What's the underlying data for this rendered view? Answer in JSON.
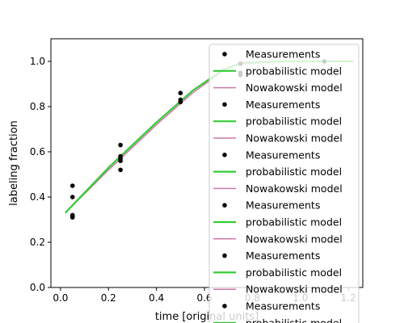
{
  "chart_data": {
    "type": "line",
    "xlabel": "time [original units]",
    "ylabel": "labeling fraction",
    "xlim": [
      -0.04,
      1.26
    ],
    "ylim": [
      0.0,
      1.1
    ],
    "xticks": [
      {
        "value": 0.0,
        "label": "0.0"
      },
      {
        "value": 0.2,
        "label": "0.2"
      },
      {
        "value": 0.4,
        "label": "0.4"
      },
      {
        "value": 0.6,
        "label": "0.6"
      },
      {
        "value": 0.8,
        "label": "0.8"
      },
      {
        "value": 1.0,
        "label": "1.0"
      },
      {
        "value": 1.2,
        "label": "1.2"
      }
    ],
    "yticks": [
      {
        "value": 0.0,
        "label": "0.0"
      },
      {
        "value": 0.2,
        "label": "0.2"
      },
      {
        "value": 0.4,
        "label": "0.4"
      },
      {
        "value": 0.6,
        "label": "0.6"
      },
      {
        "value": 0.8,
        "label": "0.8"
      },
      {
        "value": 1.0,
        "label": "1.0"
      }
    ],
    "grid": false,
    "legend_position": "top-right",
    "colors": {
      "measurements": "#000000",
      "probabilistic": "#33cc33",
      "nowakowski": "#cc79a7",
      "axes": "#000000"
    },
    "measurements": {
      "name": "Measurements",
      "points": [
        {
          "x": 0.05,
          "y": 0.45
        },
        {
          "x": 0.05,
          "y": 0.4
        },
        {
          "x": 0.05,
          "y": 0.32
        },
        {
          "x": 0.05,
          "y": 0.31
        },
        {
          "x": 0.05,
          "y": 0.315
        },
        {
          "x": 0.25,
          "y": 0.63
        },
        {
          "x": 0.25,
          "y": 0.58
        },
        {
          "x": 0.25,
          "y": 0.57
        },
        {
          "x": 0.25,
          "y": 0.56
        },
        {
          "x": 0.25,
          "y": 0.52
        },
        {
          "x": 0.5,
          "y": 0.86
        },
        {
          "x": 0.5,
          "y": 0.83
        },
        {
          "x": 0.5,
          "y": 0.82
        },
        {
          "x": 0.75,
          "y": 0.99
        },
        {
          "x": 0.75,
          "y": 0.95
        },
        {
          "x": 0.75,
          "y": 0.94
        },
        {
          "x": 1.1,
          "y": 1.0
        }
      ]
    },
    "lines": [
      {
        "name": "Nowakowski model",
        "color_key": "nowakowski",
        "width": 1.5,
        "points": [
          {
            "x": 0.02,
            "y": 0.33
          },
          {
            "x": 0.2,
            "y": 0.52
          },
          {
            "x": 0.4,
            "y": 0.72
          },
          {
            "x": 0.55,
            "y": 0.86
          },
          {
            "x": 0.68,
            "y": 0.96
          },
          {
            "x": 0.75,
            "y": 0.995
          },
          {
            "x": 0.9,
            "y": 1.0
          },
          {
            "x": 1.22,
            "y": 1.0
          }
        ]
      },
      {
        "name": "probabilistic model",
        "color_key": "probabilistic",
        "width": 2.2,
        "points": [
          {
            "x": 0.02,
            "y": 0.33
          },
          {
            "x": 0.2,
            "y": 0.53
          },
          {
            "x": 0.4,
            "y": 0.73
          },
          {
            "x": 0.55,
            "y": 0.87
          },
          {
            "x": 0.68,
            "y": 0.965
          },
          {
            "x": 0.75,
            "y": 0.99
          },
          {
            "x": 0.9,
            "y": 1.0
          },
          {
            "x": 1.22,
            "y": 1.0
          }
        ]
      }
    ],
    "legend_entries": [
      {
        "label": "Measurements",
        "kind": "marker",
        "color_key": "measurements"
      },
      {
        "label": "probabilistic model",
        "kind": "line",
        "color_key": "probabilistic"
      },
      {
        "label": "Nowakowski model",
        "kind": "line",
        "color_key": "nowakowski"
      },
      {
        "label": "Measurements",
        "kind": "marker",
        "color_key": "measurements"
      },
      {
        "label": "probabilistic model",
        "kind": "line",
        "color_key": "probabilistic"
      },
      {
        "label": "Nowakowski model",
        "kind": "line",
        "color_key": "nowakowski"
      },
      {
        "label": "Measurements",
        "kind": "marker",
        "color_key": "measurements"
      },
      {
        "label": "probabilistic model",
        "kind": "line",
        "color_key": "probabilistic"
      },
      {
        "label": "Nowakowski model",
        "kind": "line",
        "color_key": "nowakowski"
      },
      {
        "label": "Measurements",
        "kind": "marker",
        "color_key": "measurements"
      },
      {
        "label": "probabilistic model",
        "kind": "line",
        "color_key": "probabilistic"
      },
      {
        "label": "Nowakowski model",
        "kind": "line",
        "color_key": "nowakowski"
      },
      {
        "label": "Measurements",
        "kind": "marker",
        "color_key": "measurements"
      },
      {
        "label": "probabilistic model",
        "kind": "line",
        "color_key": "probabilistic"
      },
      {
        "label": "Nowakowski model",
        "kind": "line",
        "color_key": "nowakowski"
      },
      {
        "label": "Measurements",
        "kind": "marker",
        "color_key": "measurements"
      },
      {
        "label": "probabilistic model",
        "kind": "line",
        "color_key": "probabilistic"
      }
    ]
  }
}
